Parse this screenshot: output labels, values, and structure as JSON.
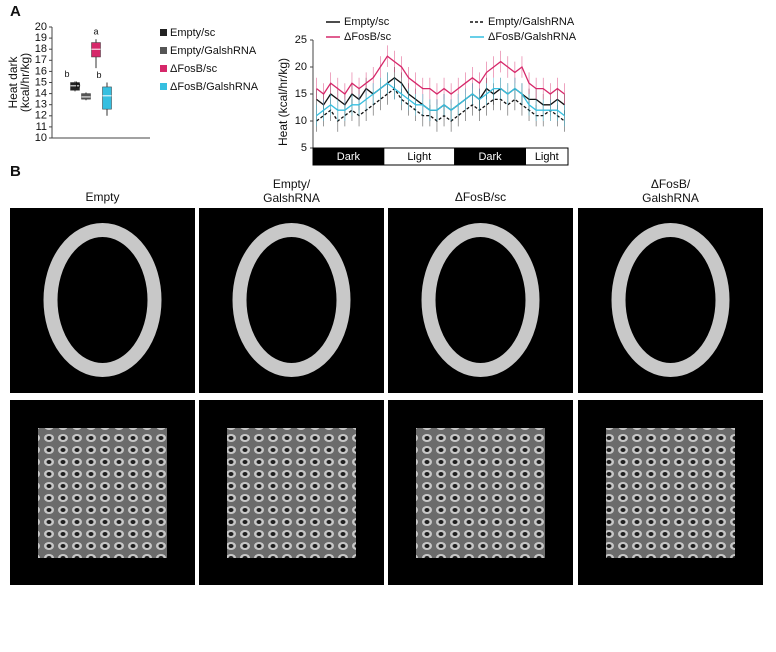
{
  "panels": {
    "a": "A",
    "b": "B"
  },
  "chart_data": [
    {
      "type": "box",
      "ylabel": [
        "Heat dark",
        "(kcal/hr/kg)"
      ],
      "ylim": [
        10,
        20
      ],
      "yticks": [
        10,
        11,
        12,
        13,
        14,
        15,
        16,
        17,
        18,
        19,
        20
      ],
      "series": [
        {
          "name": "Empty/sc",
          "color": "#222222",
          "min": 14.2,
          "q1": 14.3,
          "median": 14.7,
          "q3": 15.0,
          "max": 15.1,
          "annotation": "b"
        },
        {
          "name": "Empty/GalshRNA",
          "color": "#555555",
          "min": 13.4,
          "q1": 13.5,
          "median": 13.7,
          "q3": 14.0,
          "max": 14.1,
          "annotation": "b"
        },
        {
          "name": "ΔFosB/sc",
          "color": "#d6286a",
          "min": 16.3,
          "q1": 17.3,
          "median": 18.0,
          "q3": 18.6,
          "max": 18.9,
          "annotation": "a"
        },
        {
          "name": "ΔFosB/GalshRNA",
          "color": "#36bfe0",
          "min": 12.0,
          "q1": 12.6,
          "median": 13.8,
          "q3": 14.6,
          "max": 15.0,
          "annotation": "b"
        }
      ]
    },
    {
      "type": "line",
      "ylabel": "Heat (kcal/hr/kg)",
      "ylim": [
        5,
        25
      ],
      "yticks": [
        5,
        10,
        15,
        20,
        25
      ],
      "phases": [
        {
          "label": "Dark",
          "start": 0,
          "end": 10
        },
        {
          "label": "Light",
          "start": 10,
          "end": 20
        },
        {
          "label": "Dark",
          "start": 20,
          "end": 30
        },
        {
          "label": "Light",
          "start": 30,
          "end": 36
        }
      ],
      "series": [
        {
          "name": "Empty/sc",
          "color": "#111111",
          "dashed": false,
          "values": [
            14,
            13,
            15,
            14,
            13,
            15,
            14,
            16,
            15,
            16,
            17,
            18,
            17,
            15,
            14,
            13,
            12,
            12,
            13,
            12,
            13,
            14,
            15,
            14,
            16,
            15,
            16,
            15,
            16,
            15,
            14,
            14,
            13,
            13,
            14,
            13
          ],
          "errors": [
            2,
            2,
            2,
            2,
            2,
            2,
            2,
            2,
            2,
            2,
            2,
            2,
            2,
            2,
            2,
            2,
            2,
            2,
            2,
            2,
            2,
            2,
            2,
            2,
            2,
            2,
            2,
            2,
            2,
            2,
            2,
            2,
            2,
            2,
            2,
            2
          ]
        },
        {
          "name": "ΔFosB/sc",
          "color": "#d6286a",
          "dashed": false,
          "values": [
            16,
            15,
            17,
            16,
            15,
            17,
            16,
            17,
            18,
            20,
            22,
            21,
            20,
            18,
            17,
            16,
            16,
            15,
            16,
            15,
            16,
            17,
            18,
            17,
            19,
            20,
            21,
            20,
            19,
            20,
            17,
            16,
            16,
            15,
            16,
            15
          ],
          "errors": [
            2,
            2,
            2,
            2,
            2,
            2,
            2,
            2,
            2,
            2,
            2,
            2,
            2,
            2,
            2,
            2,
            2,
            2,
            2,
            2,
            2,
            2,
            2,
            2,
            2,
            2,
            2,
            2,
            2,
            2,
            2,
            2,
            2,
            2,
            2,
            2
          ]
        },
        {
          "name": "Empty/GalshRNA",
          "color": "#111111",
          "dashed": true,
          "values": [
            10,
            11,
            12,
            10,
            11,
            12,
            11,
            12,
            13,
            14,
            15,
            16,
            14,
            13,
            12,
            11,
            11,
            10,
            11,
            10,
            11,
            12,
            13,
            12,
            13,
            14,
            14,
            13,
            14,
            13,
            12,
            11,
            11,
            12,
            11,
            10
          ],
          "errors": [
            2,
            2,
            2,
            2,
            2,
            2,
            2,
            2,
            2,
            2,
            2,
            2,
            2,
            2,
            2,
            2,
            2,
            2,
            2,
            2,
            2,
            2,
            2,
            2,
            2,
            2,
            2,
            2,
            2,
            2,
            2,
            2,
            2,
            2,
            2,
            2
          ]
        },
        {
          "name": "ΔFosB/GalshRNA",
          "color": "#36bfe0",
          "dashed": false,
          "values": [
            11,
            12,
            13,
            12,
            12,
            13,
            13,
            14,
            15,
            16,
            17,
            16,
            15,
            14,
            13,
            13,
            12,
            12,
            13,
            12,
            13,
            14,
            15,
            14,
            15,
            16,
            16,
            15,
            16,
            15,
            13,
            12,
            12,
            12,
            12,
            11
          ],
          "errors": [
            2,
            2,
            2,
            2,
            2,
            2,
            2,
            2,
            2,
            2,
            2,
            2,
            2,
            2,
            2,
            2,
            2,
            2,
            2,
            2,
            2,
            2,
            2,
            2,
            2,
            2,
            2,
            2,
            2,
            2,
            2,
            2,
            2,
            2,
            2,
            2
          ]
        }
      ]
    }
  ],
  "panel_b": {
    "columns": [
      [
        "Empty"
      ],
      [
        "Empty/",
        "GalshRNA"
      ],
      [
        "ΔFosB/sc"
      ],
      [
        "ΔFosB/",
        "GalshRNA"
      ]
    ]
  }
}
